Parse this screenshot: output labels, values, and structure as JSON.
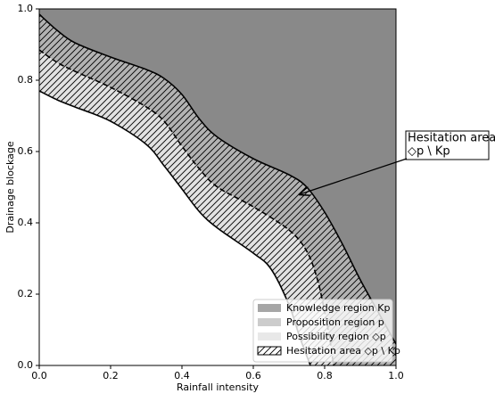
{
  "chart_data": {
    "type": "region",
    "xlabel": "Rainfall intensity",
    "ylabel": "Drainage blockage",
    "xlim": [
      0,
      1
    ],
    "ylim": [
      0,
      1
    ],
    "xticks": [
      {
        "value": 0,
        "label": "0.0"
      },
      {
        "value": 0.2,
        "label": "0.2"
      },
      {
        "value": 0.4,
        "label": "0.4"
      },
      {
        "value": 0.6,
        "label": "0.6"
      },
      {
        "value": 0.8,
        "label": "0.8"
      },
      {
        "value": 1,
        "label": "1.0"
      }
    ],
    "yticks": [
      {
        "value": 0,
        "label": "0.0"
      },
      {
        "value": 0.2,
        "label": "0.2"
      },
      {
        "value": 0.4,
        "label": "0.4"
      },
      {
        "value": 0.6,
        "label": "0.6"
      },
      {
        "value": 0.8,
        "label": "0.8"
      },
      {
        "value": 1,
        "label": "1.0"
      }
    ],
    "boundaries": {
      "upper": {
        "x": [
          0,
          0.05,
          0.1,
          0.2,
          0.3,
          0.35,
          0.4,
          0.45,
          0.5,
          0.6,
          0.7,
          0.75,
          0.8,
          0.85,
          0.9,
          0.95,
          1.0
        ],
        "y": [
          0.985,
          0.94,
          0.905,
          0.865,
          0.83,
          0.805,
          0.76,
          0.69,
          0.64,
          0.58,
          0.535,
          0.5,
          0.43,
          0.34,
          0.24,
          0.15,
          0.06
        ],
        "dash": false
      },
      "middle": {
        "x": [
          0,
          0.05,
          0.1,
          0.2,
          0.3,
          0.35,
          0.4,
          0.45,
          0.5,
          0.6,
          0.7,
          0.75,
          0.78,
          0.8,
          0.815,
          0.825
        ],
        "y": [
          0.885,
          0.85,
          0.825,
          0.78,
          0.725,
          0.685,
          0.615,
          0.55,
          0.5,
          0.445,
          0.38,
          0.32,
          0.24,
          0.15,
          0.07,
          0
        ],
        "dash": true
      },
      "lower": {
        "x": [
          0,
          0.05,
          0.1,
          0.2,
          0.3,
          0.35,
          0.4,
          0.45,
          0.5,
          0.6,
          0.65,
          0.7,
          0.73,
          0.76
        ],
        "y": [
          0.77,
          0.745,
          0.725,
          0.685,
          0.62,
          0.56,
          0.495,
          0.43,
          0.385,
          0.315,
          0.27,
          0.17,
          0.08,
          0
        ],
        "dash": false
      }
    },
    "region_colors": {
      "knowledge": "#898989",
      "proposition": "#b3b3b3",
      "possibility": "#e2e2e2"
    },
    "legend": [
      {
        "label": "Knowledge region Kp",
        "color": "#a6a6a6",
        "hatch": false
      },
      {
        "label": "Proposition region p",
        "color": "#cccccc",
        "hatch": false
      },
      {
        "label": "Possibility region ◇p",
        "color": "#e8e8e8",
        "hatch": false
      },
      {
        "label": "Hesitation area ◇p \\ Kp",
        "color": "#ffffff",
        "hatch": true
      }
    ],
    "legend_position": "lower right",
    "annotation": {
      "lines": [
        "Hesitation area",
        "◇p \\ Kp"
      ],
      "xy": [
        0.73,
        0.48
      ],
      "xytext": [
        1.03,
        0.62
      ]
    }
  }
}
